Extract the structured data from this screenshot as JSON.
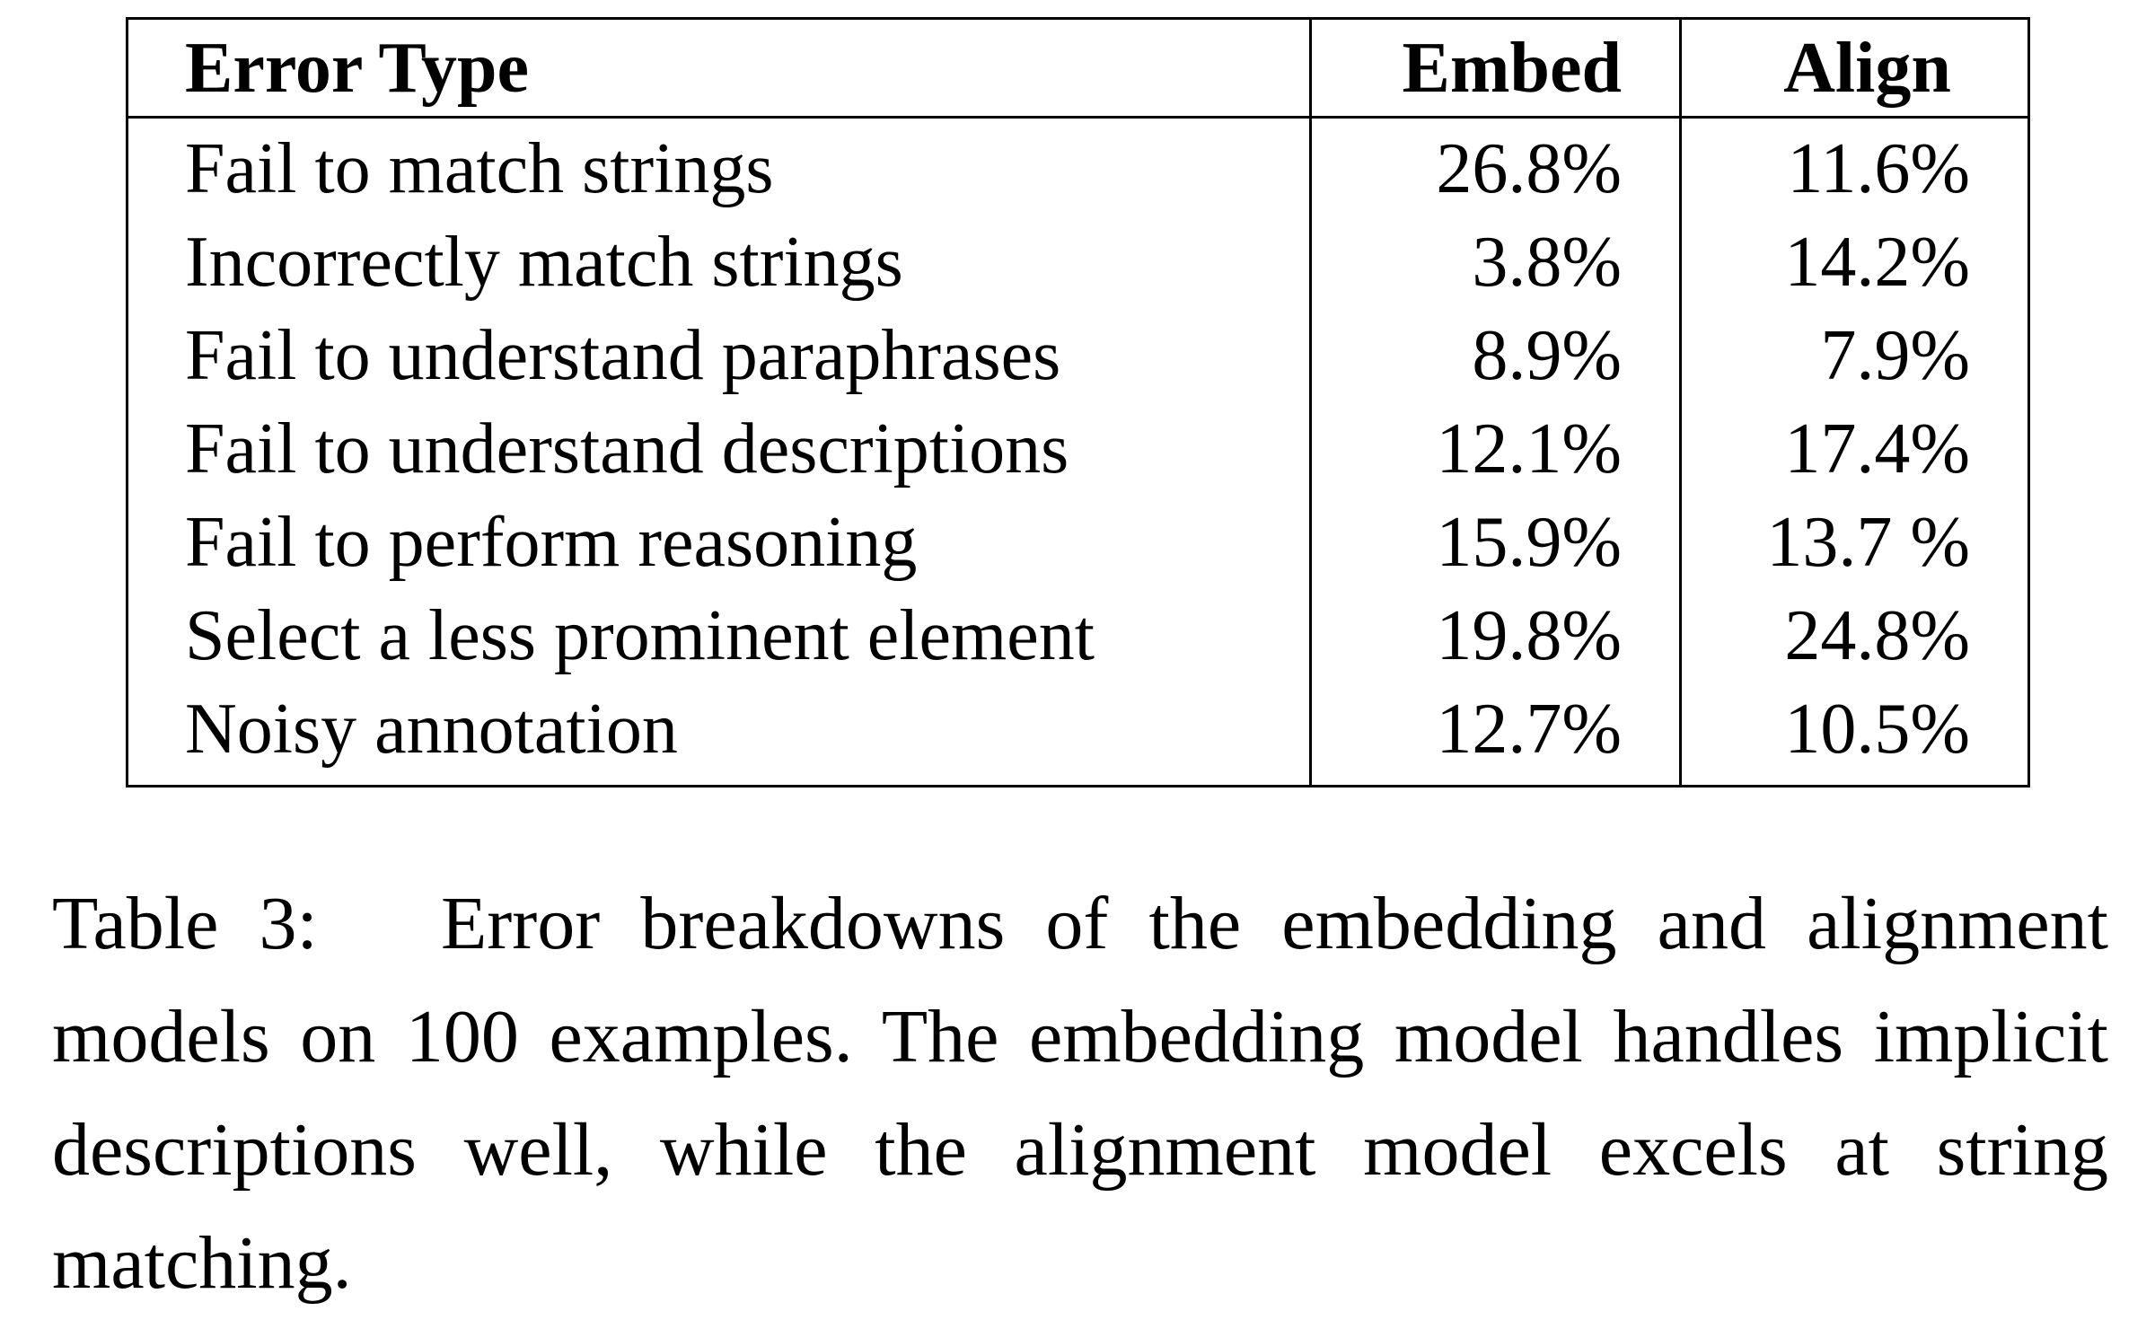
{
  "table": {
    "headers": [
      "Error Type",
      "Embed",
      "Align"
    ],
    "rows": [
      {
        "type": "Fail to match strings",
        "embed": "26.8%",
        "align": "11.6%"
      },
      {
        "type": "Incorrectly match strings",
        "embed": "3.8%",
        "align": "14.2%"
      },
      {
        "type": "Fail to understand paraphrases",
        "embed": "8.9%",
        "align": "7.9%"
      },
      {
        "type": "Fail to understand descriptions",
        "embed": "12.1%",
        "align": "17.4%"
      },
      {
        "type": "Fail to perform reasoning",
        "embed": "15.9%",
        "align": "13.7 %"
      },
      {
        "type": "Select a less prominent element",
        "embed": "19.8%",
        "align": "24.8%"
      },
      {
        "type": "Noisy annotation",
        "embed": "12.7%",
        "align": "10.5%"
      }
    ]
  },
  "caption": {
    "label": "Table 3:",
    "text": "Error breakdowns of the embedding and alignment models on 100 examples.  The embedding model handles implicit descriptions well, while the alignment model excels at string matching."
  }
}
